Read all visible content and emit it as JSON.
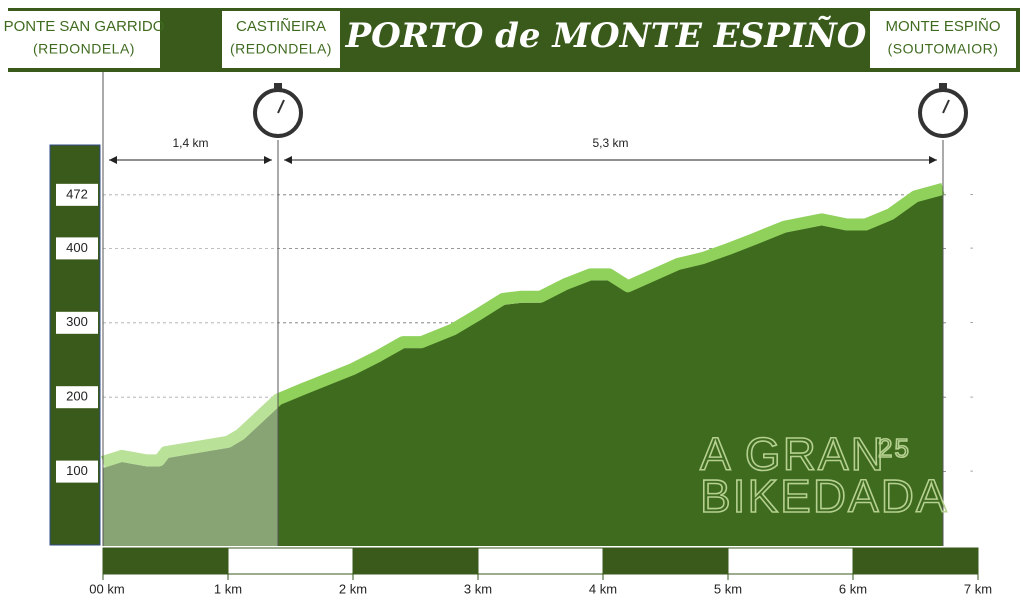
{
  "chart_data": {
    "type": "area",
    "title": "PORTO de MONTE ESPIÑO",
    "waypoints": [
      {
        "name": "PONTE SAN GARRIDO",
        "region": "(REDONDELA)",
        "km": 0
      },
      {
        "name": "CASTIÑEIRA",
        "region": "(REDONDELA)",
        "km": 1.4
      },
      {
        "name": "MONTE ESPIÑO",
        "region": "(SOUTOMAIOR)",
        "km": 6.72
      }
    ],
    "segments": [
      "1,4 km",
      "5,3 km"
    ],
    "x": [
      0,
      0.15,
      0.35,
      0.45,
      0.5,
      1.0,
      1.1,
      1.4,
      1.6,
      2.0,
      2.2,
      2.4,
      2.55,
      2.8,
      3.0,
      3.2,
      3.35,
      3.5,
      3.7,
      3.9,
      4.05,
      4.2,
      4.6,
      4.8,
      5.0,
      5.2,
      5.45,
      5.75,
      5.95,
      6.1,
      6.3,
      6.5,
      6.72
    ],
    "values": [
      105,
      113,
      107,
      107,
      118,
      132,
      142,
      189,
      203,
      230,
      247,
      266,
      266,
      283,
      303,
      324,
      327,
      327,
      344,
      357,
      357,
      341,
      371,
      379,
      391,
      404,
      421,
      431,
      424,
      424,
      438,
      462,
      472
    ],
    "color": "#3f6b1f",
    "line_color": "#8fd15a",
    "xlim": [
      0,
      7
    ],
    "ylim": [
      0,
      500
    ],
    "xticks": [
      {
        "value": 0,
        "label": "00 km"
      },
      {
        "value": 1,
        "label": "1 km"
      },
      {
        "value": 2,
        "label": "2 km"
      },
      {
        "value": 3,
        "label": "3 km"
      },
      {
        "value": 4,
        "label": "4 km"
      },
      {
        "value": 5,
        "label": "5 km"
      },
      {
        "value": 6,
        "label": "6 km"
      },
      {
        "value": 7,
        "label": "7 km"
      }
    ],
    "yticks": [
      100,
      200,
      300,
      400,
      472
    ],
    "grid": true,
    "watermark": [
      "A GRAN",
      "BIKEDADA",
      "25"
    ]
  }
}
